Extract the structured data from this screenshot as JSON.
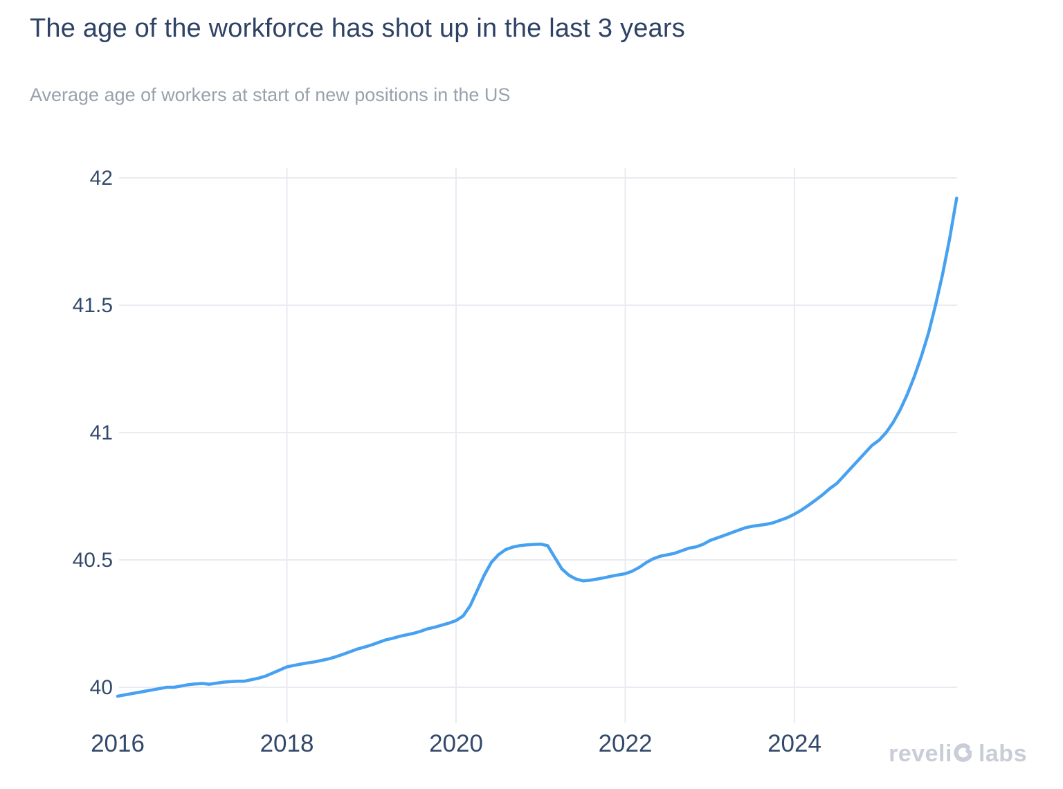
{
  "header": {
    "title": "The age of the workforce has shot up in the last 3 years",
    "subtitle": "Average age of workers at start of new positions in the US"
  },
  "branding": {
    "wordmark_left": "reveli",
    "wordmark_right": "labs"
  },
  "colors": {
    "title": "#2e4266",
    "subtitle": "#98a1ad",
    "tick_label": "#33496b",
    "grid": "#e9ebf2",
    "line": "#47a1f0",
    "logo": "#c9cdd7",
    "background": "#ffffff"
  },
  "chart_data": {
    "type": "line",
    "title": "The age of the workforce has shot up in the last 3 years",
    "subtitle": "Average age of workers at start of new positions in the US",
    "xlabel": "",
    "ylabel": "",
    "x_tick_labels": [
      "2016",
      "2018",
      "2020",
      "2022",
      "2024"
    ],
    "x_ticks": [
      2016,
      2018,
      2020,
      2022,
      2024
    ],
    "y_tick_labels": [
      "40",
      "40.5",
      "41",
      "41.5",
      "42"
    ],
    "y_ticks": [
      40,
      40.5,
      41,
      41.5,
      42
    ],
    "x_range": [
      2016.0,
      2025.95
    ],
    "y_range": [
      39.86,
      42.04
    ],
    "grid": true,
    "legend": false,
    "line_color": "#47a1f0",
    "grid_color": "#e9ebf2",
    "series": [
      {
        "name": "Average age of workers at start of new positions in the US",
        "start": "2016-01",
        "frequency": "monthly",
        "values": [
          39.965,
          39.97,
          39.975,
          39.98,
          39.985,
          39.99,
          39.995,
          40.0,
          40.0,
          40.005,
          40.01,
          40.013,
          40.015,
          40.012,
          40.016,
          40.02,
          40.022,
          40.024,
          40.024,
          40.03,
          40.036,
          40.044,
          40.056,
          40.068,
          40.08,
          40.086,
          40.091,
          40.096,
          40.1,
          40.106,
          40.112,
          40.12,
          40.13,
          40.14,
          40.15,
          40.158,
          40.166,
          40.176,
          40.186,
          40.192,
          40.2,
          40.206,
          40.212,
          40.22,
          40.23,
          40.236,
          40.244,
          40.252,
          40.262,
          40.28,
          40.32,
          40.38,
          40.44,
          40.49,
          40.52,
          40.54,
          40.55,
          40.556,
          40.559,
          40.561,
          40.562,
          40.556,
          40.51,
          40.465,
          40.44,
          40.425,
          40.418,
          40.42,
          40.425,
          40.43,
          40.436,
          40.441,
          40.446,
          40.456,
          40.471,
          40.49,
          40.505,
          40.515,
          40.52,
          40.526,
          40.536,
          40.546,
          40.551,
          40.561,
          40.576,
          40.586,
          40.596,
          40.606,
          40.616,
          40.626,
          40.632,
          40.636,
          40.64,
          40.646,
          40.656,
          40.666,
          40.68,
          40.696,
          40.715,
          40.735,
          40.756,
          40.78,
          40.8,
          40.83,
          40.86,
          40.89,
          40.92,
          40.95,
          40.97,
          41.0,
          41.04,
          41.09,
          41.15,
          41.22,
          41.3,
          41.39,
          41.5,
          41.62,
          41.76,
          41.92
        ]
      }
    ]
  }
}
